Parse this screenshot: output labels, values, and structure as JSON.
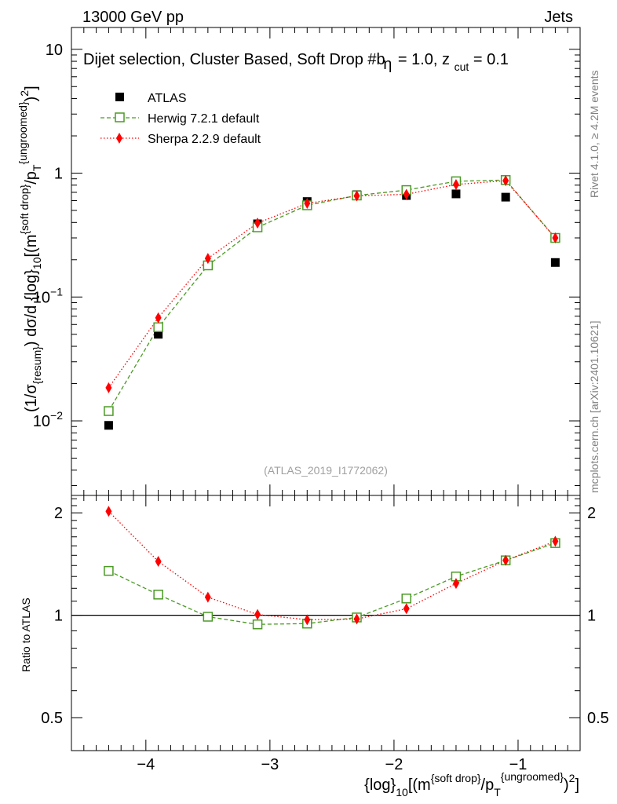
{
  "header": {
    "left": "13000 GeV pp",
    "right": "Jets"
  },
  "side_labels": {
    "rivet": "Rivet 4.1.0, ≥ 4.2M events",
    "mcplots": "mcplots.cern.ch [arXiv:2401.10621]"
  },
  "chart_data": {
    "type": "scatter",
    "title": "Dijet selection, Cluster Based, Soft Drop #b",
    "title_suffix": "= 1.0, z",
    "title_eta": "η",
    "title_sub": "cut",
    "title_tail": " = 0.1",
    "analysis_id": "(ATLAS_2019_I1772062)",
    "ylabel_top": "(1/σ{resum}) dσ/d{log}10[(m{soft drop}/pT{ungroomed})2]",
    "ylabel_bottom": "Ratio to ATLAS",
    "xlabel": "{log}10[(m{soft drop}/pT{ungroomed})2]",
    "xlim": [
      -4.6,
      -0.5
    ],
    "ylim_top": [
      0.0025,
      15
    ],
    "ylim_bottom": [
      0.4,
      2.25
    ],
    "x_ticks": [
      -4,
      -3,
      -2,
      -1
    ],
    "x_tick_labels": [
      "−4",
      "−3",
      "−2",
      "−1"
    ],
    "y_ticks_top": [
      {
        "value": 0.01,
        "base": "10",
        "exp": "−2"
      },
      {
        "value": 0.1,
        "base": "10",
        "exp": "−1"
      },
      {
        "value": 1,
        "base": "1",
        "exp": ""
      },
      {
        "value": 10,
        "base": "10",
        "exp": ""
      }
    ],
    "y_ticks_bottom": [
      {
        "value": 0.5,
        "label": "0.5"
      },
      {
        "value": 1,
        "label": "1"
      },
      {
        "value": 2,
        "label": "2"
      }
    ],
    "x": [
      -4.3,
      -3.9,
      -3.5,
      -3.1,
      -2.7,
      -2.3,
      -1.9,
      -1.5,
      -1.1,
      -0.7
    ],
    "series": [
      {
        "name": "ATLAS",
        "color": "#000000",
        "marker": "square-filled",
        "values": [
          0.0092,
          0.05,
          0.18,
          0.39,
          0.59,
          0.67,
          0.66,
          0.68,
          0.64,
          0.19
        ]
      },
      {
        "name": "Herwig 7.2.1 default",
        "color": "#4a9a24",
        "marker": "square-open",
        "line": "dashed",
        "values": [
          0.012,
          0.057,
          0.18,
          0.365,
          0.55,
          0.66,
          0.73,
          0.86,
          0.88,
          0.3
        ],
        "ratio": [
          1.35,
          1.15,
          0.99,
          0.94,
          0.945,
          0.985,
          1.12,
          1.3,
          1.45,
          1.63
        ]
      },
      {
        "name": "Sherpa 2.2.9 default",
        "color": "#ff0000",
        "marker": "diamond-filled",
        "line": "dotted",
        "values": [
          0.0185,
          0.068,
          0.205,
          0.395,
          0.57,
          0.655,
          0.675,
          0.81,
          0.87,
          0.3
        ],
        "ratio": [
          2.02,
          1.44,
          1.13,
          1.005,
          0.97,
          0.975,
          1.045,
          1.24,
          1.45,
          1.65
        ]
      }
    ],
    "legend_position": "top-left"
  }
}
